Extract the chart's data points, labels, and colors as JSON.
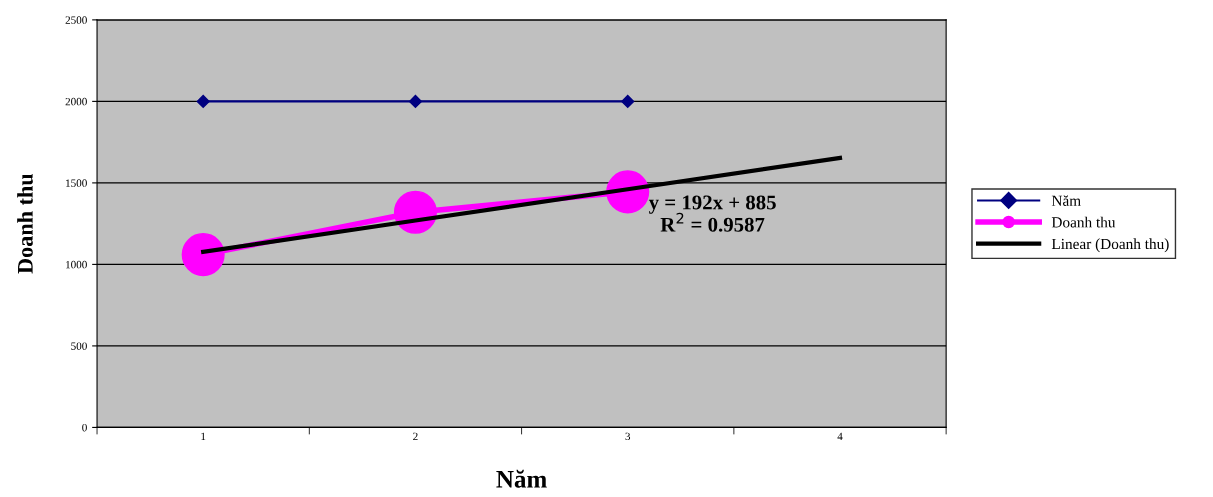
{
  "chart_data": {
    "type": "line",
    "xlabel": "Năm",
    "ylabel": "Doanh thu",
    "categories": [
      "1",
      "2",
      "3",
      "4"
    ],
    "series": [
      {
        "name": "Năm",
        "color": "#000080",
        "values": [
          2000,
          2000,
          2000,
          null
        ],
        "marker": "diamond"
      },
      {
        "name": "Doanh thu",
        "color": "#ff00ff",
        "values": [
          1060,
          1320,
          1445,
          null
        ],
        "marker": "circle"
      },
      {
        "name": "Linear (Doanh thu)",
        "color": "#000000",
        "values": [
          1077,
          1269,
          1461,
          1653
        ],
        "marker": "none"
      }
    ],
    "annotations": [
      {
        "text": "y = 192x + 885\nR$^{2}$ = 0.9587",
        "x": "3",
        "y": 1300
      }
    ],
    "ylim": [
      0,
      2500
    ],
    "yticks": [
      0,
      500,
      1000,
      1500,
      2000,
      2500
    ],
    "grid": "y",
    "legend": "right"
  }
}
